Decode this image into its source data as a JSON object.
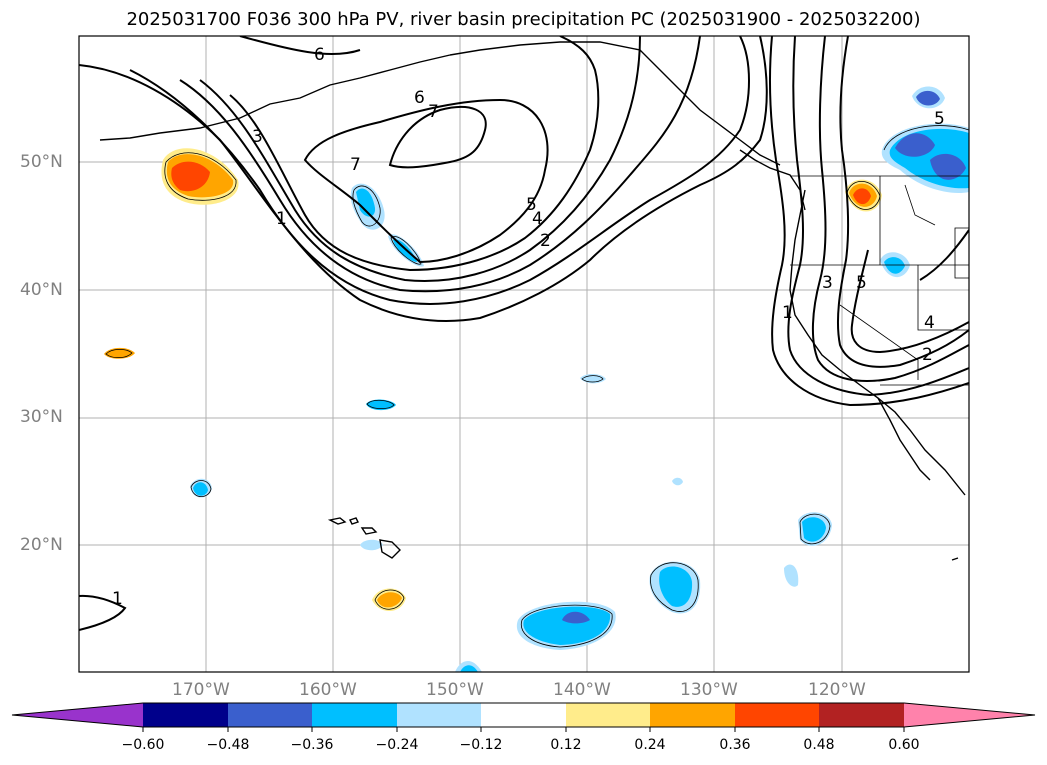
{
  "title": "2025031700 F036 300 hPa PV, river basin precipitation PC (2025031900 - 2025032200)",
  "lat_labels": [
    "50°N",
    "40°N",
    "30°N",
    "20°N"
  ],
  "lon_labels": [
    "170°W",
    "160°W",
    "150°W",
    "140°W",
    "130°W",
    "120°W"
  ],
  "contour_labels": [
    "6",
    "7",
    "6",
    "7",
    "3",
    "1",
    "5",
    "4",
    "2",
    "3",
    "5",
    "1",
    "2",
    "4",
    "5",
    "1"
  ],
  "colorbar": {
    "colors": [
      "#9933cc",
      "#00008b",
      "#3a5fcd",
      "#00bfff",
      "#b0e2ff",
      "#ffffff",
      "#ffec8b",
      "#ffa500",
      "#ff4500",
      "#b22222",
      "#ff82ab"
    ],
    "ticks": [
      "−0.60",
      "−0.48",
      "−0.36",
      "−0.24",
      "−0.12",
      "0.12",
      "0.24",
      "0.36",
      "0.48",
      "0.60"
    ]
  }
}
